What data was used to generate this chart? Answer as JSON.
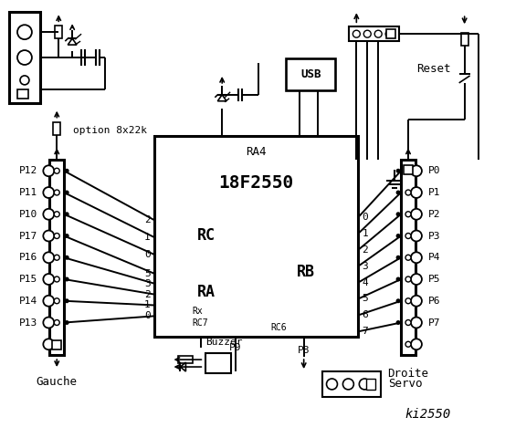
{
  "bg_color": "#ffffff",
  "chip_label": "18F2550",
  "chip_sublabel": "RA4",
  "rc_label": "RC",
  "ra_label": "RA",
  "rb_label": "RB",
  "left_pins_labels": [
    "P12",
    "P11",
    "P10",
    "P17",
    "P16",
    "P15",
    "P14",
    "P13"
  ],
  "right_pins_labels": [
    "P0",
    "P1",
    "P2",
    "P3",
    "P4",
    "P5",
    "P6",
    "P7"
  ],
  "rc_pins": [
    "2",
    "1",
    "0"
  ],
  "ra_pins": [
    "5",
    "3",
    "2",
    "1",
    "0"
  ],
  "rb_pins": [
    "0",
    "1",
    "2",
    "3",
    "4",
    "5",
    "6",
    "7"
  ],
  "bottom_labels": [
    "Buzzer",
    "P9",
    "P8",
    "Servo"
  ],
  "left_group_label": "Gauche",
  "right_group_label": "Droite",
  "reset_label": "Reset",
  "usb_label": "USB",
  "option_label": "option 8x22k",
  "ki_label": "ki2550"
}
